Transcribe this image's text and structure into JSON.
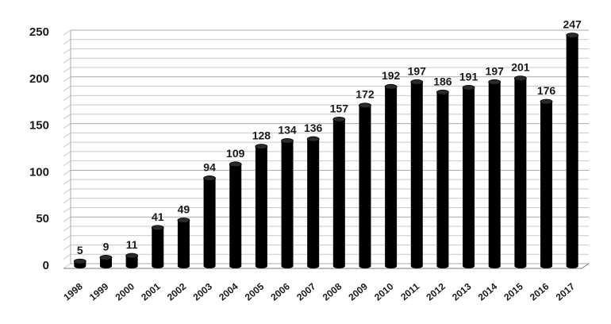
{
  "chart_data": {
    "type": "bar",
    "categories": [
      "1998",
      "1999",
      "2000",
      "2001",
      "2002",
      "2003",
      "2004",
      "2005",
      "2006",
      "2007",
      "2008",
      "2009",
      "2010",
      "2011",
      "2012",
      "2013",
      "2014",
      "2015",
      "2016",
      "2017"
    ],
    "values": [
      5,
      9,
      11,
      41,
      49,
      94,
      109,
      128,
      134,
      136,
      157,
      172,
      192,
      197,
      186,
      191,
      197,
      201,
      176,
      247
    ],
    "title": "",
    "xlabel": "",
    "ylabel": "",
    "ylim": [
      0,
      250
    ],
    "yticks": [
      0,
      50,
      100,
      150,
      200,
      250
    ],
    "grid": true,
    "bar_color": "#000000",
    "grid_color": "#c8c8c8"
  }
}
